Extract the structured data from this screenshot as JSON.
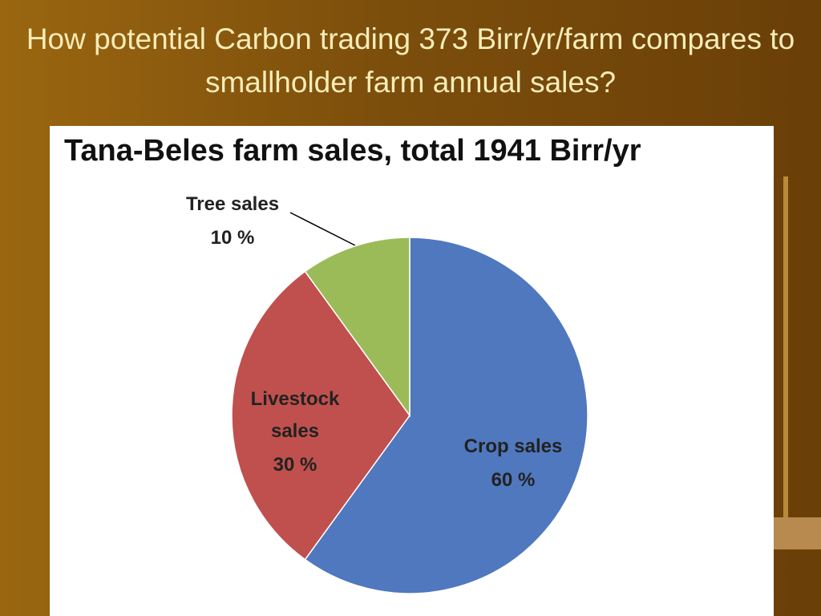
{
  "slide_title": "How potential Carbon trading 373 Birr/yr/farm compares to smallholder farm annual sales?",
  "chart_data": {
    "type": "pie",
    "title": "Tana-Beles farm sales, total 1941 Birr/yr",
    "categories": [
      "Crop sales",
      "Livestock sales",
      "Tree sales"
    ],
    "values": [
      60,
      30,
      10
    ],
    "value_labels": [
      "60 %",
      "30 %",
      "10 %"
    ],
    "colors": [
      "#5078be",
      "#c0504d",
      "#9bbb59"
    ]
  }
}
